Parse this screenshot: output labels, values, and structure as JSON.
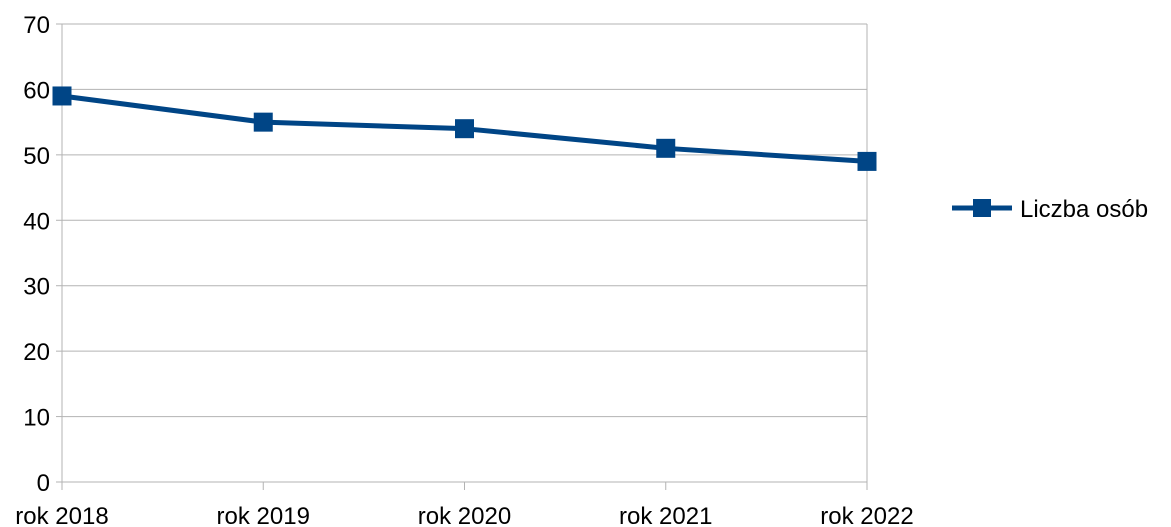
{
  "chart_data": {
    "type": "line",
    "title": "",
    "xlabel": "",
    "ylabel": "",
    "categories": [
      "rok 2018",
      "rok 2019",
      "rok 2020",
      "rok 2021",
      "rok 2022"
    ],
    "series": [
      {
        "name": "Liczba osób",
        "values": [
          59,
          55,
          54,
          51,
          49
        ],
        "color": "#004586",
        "marker": "square"
      }
    ],
    "ylim": [
      0,
      70
    ],
    "yticks": [
      0,
      10,
      20,
      30,
      40,
      50,
      60,
      70
    ],
    "grid": true,
    "legend_position": "right"
  }
}
